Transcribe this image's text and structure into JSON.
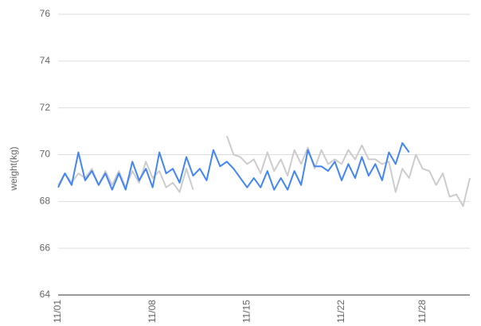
{
  "chart_data": {
    "type": "line",
    "y_label": "weight(kg)",
    "categories": [
      "11/01",
      null,
      null,
      null,
      null,
      null,
      null,
      null,
      null,
      null,
      null,
      null,
      null,
      null,
      "11/08",
      null,
      null,
      null,
      null,
      null,
      null,
      null,
      null,
      null,
      null,
      null,
      null,
      null,
      "11/15",
      null,
      null,
      null,
      null,
      null,
      null,
      null,
      null,
      null,
      null,
      null,
      null,
      null,
      "11/22",
      null,
      null,
      null,
      null,
      null,
      null,
      null,
      null,
      null,
      null,
      null,
      "11/28",
      null,
      null,
      null,
      null,
      null,
      null,
      null
    ],
    "series": [
      {
        "color": "#4285f4",
        "values": [
          68.6,
          69.2,
          68.7,
          70.1,
          68.9,
          69.3,
          68.7,
          69.2,
          68.5,
          69.2,
          68.5,
          69.7,
          68.9,
          69.4,
          68.6,
          70.1,
          69.2,
          69.4,
          68.8,
          69.9,
          69.1,
          69.4,
          68.9,
          70.2,
          69.5,
          69.7,
          69.4,
          69.0,
          68.6,
          69.0,
          68.6,
          69.3,
          68.5,
          69.0,
          68.5,
          69.3,
          68.7,
          70.2,
          69.5,
          69.5,
          69.3,
          69.7,
          68.9,
          69.6,
          69.0,
          69.9,
          69.1,
          69.6,
          68.9,
          70.1,
          69.6,
          70.5,
          70.1,
          null,
          null,
          null,
          null,
          null,
          null,
          null,
          null,
          null
        ]
      },
      {
        "color": "#cccccc",
        "values": [
          68.7,
          69.2,
          68.8,
          69.2,
          69.0,
          69.4,
          68.7,
          69.3,
          68.7,
          69.3,
          68.6,
          69.3,
          68.8,
          69.7,
          69.0,
          69.3,
          68.6,
          68.8,
          68.4,
          69.4,
          68.5,
          null,
          null,
          null,
          null,
          70.8,
          70.0,
          69.9,
          69.6,
          69.8,
          69.2,
          70.1,
          69.3,
          69.8,
          69.1,
          70.2,
          69.6,
          70.3,
          69.4,
          70.2,
          69.6,
          69.8,
          69.6,
          70.2,
          69.8,
          70.4,
          69.8,
          69.8,
          69.6,
          69.7,
          68.4,
          69.4,
          69.0,
          70.0,
          69.4,
          69.3,
          68.7,
          69.2,
          68.2,
          68.3,
          67.8,
          69.0
        ]
      }
    ],
    "ylim": [
      64,
      76
    ],
    "yticks": [
      64,
      66,
      68,
      70,
      72,
      74,
      76
    ],
    "grid": true
  }
}
